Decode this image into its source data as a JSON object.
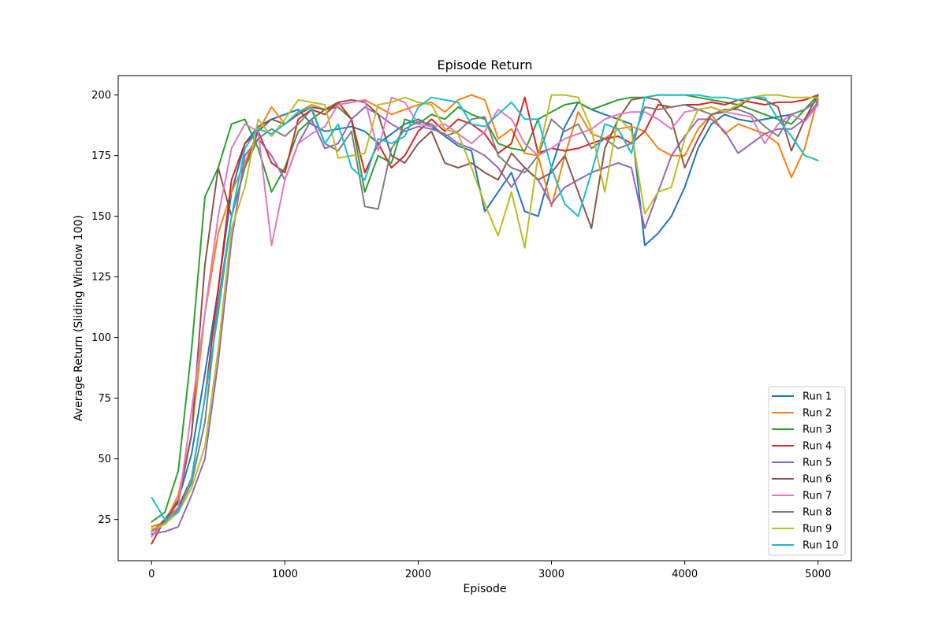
{
  "chart_data": {
    "type": "line",
    "title": "Episode Return",
    "xlabel": "Episode",
    "ylabel": "Average Return (Sliding Window 100)",
    "xlim": [
      -250,
      5250
    ],
    "ylim": [
      8,
      208
    ],
    "xticks": [
      0,
      1000,
      2000,
      3000,
      4000,
      5000
    ],
    "yticks": [
      25,
      50,
      75,
      100,
      125,
      150,
      175,
      200
    ],
    "grid": false,
    "legend_position": "lower-right",
    "x": [
      0,
      100,
      200,
      300,
      400,
      500,
      600,
      700,
      800,
      900,
      1000,
      1100,
      1200,
      1300,
      1400,
      1500,
      1600,
      1700,
      1800,
      1900,
      2000,
      2100,
      2200,
      2300,
      2400,
      2500,
      2600,
      2700,
      2800,
      2900,
      3000,
      3100,
      3200,
      3300,
      3400,
      3500,
      3600,
      3700,
      3800,
      3900,
      4000,
      4100,
      4200,
      4300,
      4400,
      4500,
      4600,
      4700,
      4800,
      4900,
      5000
    ],
    "series": [
      {
        "name": "Run 1",
        "color": "#1f77b4",
        "values": [
          20,
          25,
          33,
          52,
          85,
          120,
          160,
          180,
          187,
          190,
          192,
          194,
          188,
          185,
          186,
          187,
          185,
          180,
          184,
          188,
          190,
          187,
          183,
          179,
          177,
          152,
          160,
          168,
          152,
          150,
          170,
          187,
          197,
          194,
          192,
          190,
          188,
          138,
          143,
          150,
          162,
          178,
          188,
          192,
          190,
          189,
          190,
          191,
          192,
          194,
          198
        ]
      },
      {
        "name": "Run 2",
        "color": "#ff7f0e",
        "values": [
          22,
          24,
          35,
          60,
          110,
          143,
          160,
          172,
          185,
          195,
          188,
          193,
          196,
          194,
          196,
          197,
          198,
          195,
          192,
          194,
          196,
          197,
          193,
          198,
          200,
          198,
          182,
          186,
          176,
          175,
          154,
          175,
          193,
          184,
          182,
          186,
          187,
          185,
          178,
          175,
          175,
          186,
          192,
          184,
          188,
          186,
          184,
          180,
          166,
          178,
          199
        ]
      },
      {
        "name": "Run 3",
        "color": "#2ca02c",
        "values": [
          24,
          28,
          45,
          95,
          158,
          170,
          188,
          190,
          178,
          160,
          170,
          185,
          190,
          194,
          195,
          190,
          160,
          175,
          172,
          190,
          188,
          192,
          190,
          195,
          192,
          190,
          180,
          178,
          177,
          190,
          193,
          196,
          197,
          194,
          196,
          198,
          199,
          199,
          200,
          200,
          200,
          199,
          198,
          197,
          196,
          194,
          192,
          190,
          188,
          194,
          200
        ]
      },
      {
        "name": "Run 4",
        "color": "#d62728",
        "values": [
          15,
          25,
          30,
          42,
          75,
          120,
          165,
          180,
          185,
          172,
          168,
          190,
          194,
          192,
          197,
          190,
          168,
          180,
          170,
          175,
          185,
          190,
          185,
          190,
          188,
          184,
          176,
          180,
          199,
          176,
          178,
          177,
          178,
          180,
          182,
          183,
          180,
          185,
          196,
          195,
          196,
          196,
          197,
          196,
          198,
          197,
          196,
          197,
          197,
          198,
          200
        ]
      },
      {
        "name": "Run 5",
        "color": "#9467bd",
        "values": [
          19,
          20,
          22,
          35,
          50,
          90,
          140,
          175,
          182,
          175,
          165,
          180,
          190,
          178,
          180,
          190,
          195,
          192,
          188,
          185,
          187,
          186,
          184,
          180,
          178,
          175,
          170,
          162,
          170,
          165,
          155,
          162,
          165,
          168,
          170,
          172,
          170,
          145,
          160,
          175,
          183,
          190,
          190,
          185,
          176,
          180,
          184,
          186,
          186,
          190,
          197
        ]
      },
      {
        "name": "Run 6",
        "color": "#8c564b",
        "values": [
          18,
          25,
          32,
          60,
          130,
          170,
          150,
          170,
          185,
          190,
          188,
          192,
          195,
          194,
          197,
          198,
          197,
          192,
          175,
          172,
          180,
          185,
          172,
          170,
          172,
          168,
          165,
          176,
          170,
          165,
          168,
          175,
          160,
          145,
          178,
          190,
          198,
          199,
          198,
          190,
          170,
          182,
          192,
          193,
          195,
          199,
          198,
          195,
          177,
          190,
          200
        ]
      },
      {
        "name": "Run 7",
        "color": "#e377c2",
        "values": [
          18,
          24,
          30,
          70,
          110,
          150,
          178,
          188,
          185,
          138,
          165,
          180,
          184,
          187,
          196,
          197,
          198,
          177,
          199,
          197,
          188,
          187,
          188,
          184,
          180,
          185,
          194,
          190,
          180,
          175,
          178,
          182,
          184,
          186,
          190,
          192,
          193,
          193,
          190,
          186,
          193,
          194,
          195,
          193,
          192,
          191,
          180,
          188,
          192,
          189,
          196
        ]
      },
      {
        "name": "Run 8",
        "color": "#7f7f7f",
        "values": [
          20,
          24,
          29,
          40,
          65,
          115,
          150,
          170,
          182,
          186,
          183,
          188,
          194,
          180,
          177,
          185,
          154,
          153,
          178,
          186,
          189,
          188,
          183,
          185,
          190,
          191,
          175,
          170,
          168,
          175,
          190,
          185,
          188,
          178,
          182,
          178,
          180,
          195,
          194,
          195,
          196,
          194,
          192,
          194,
          194,
          192,
          187,
          183,
          192,
          194,
          198
        ]
      },
      {
        "name": "Run 9",
        "color": "#bcbd22",
        "values": [
          21,
          23,
          28,
          38,
          55,
          95,
          145,
          162,
          190,
          183,
          190,
          198,
          197,
          196,
          174,
          175,
          176,
          196,
          197,
          199,
          197,
          196,
          186,
          184,
          170,
          155,
          142,
          160,
          137,
          175,
          200,
          200,
          199,
          186,
          160,
          191,
          185,
          151,
          160,
          162,
          182,
          194,
          195,
          193,
          196,
          199,
          200,
          200,
          199,
          199,
          199
        ]
      },
      {
        "name": "Run 10",
        "color": "#17becf",
        "values": [
          34,
          25,
          28,
          42,
          75,
          110,
          150,
          178,
          186,
          184,
          188,
          193,
          195,
          180,
          188,
          170,
          165,
          182,
          180,
          183,
          195,
          199,
          198,
          197,
          188,
          187,
          192,
          197,
          190,
          190,
          170,
          155,
          150,
          168,
          188,
          186,
          176,
          199,
          200,
          200,
          200,
          200,
          199,
          199,
          198,
          199,
          199,
          190,
          183,
          175,
          173
        ]
      }
    ]
  }
}
